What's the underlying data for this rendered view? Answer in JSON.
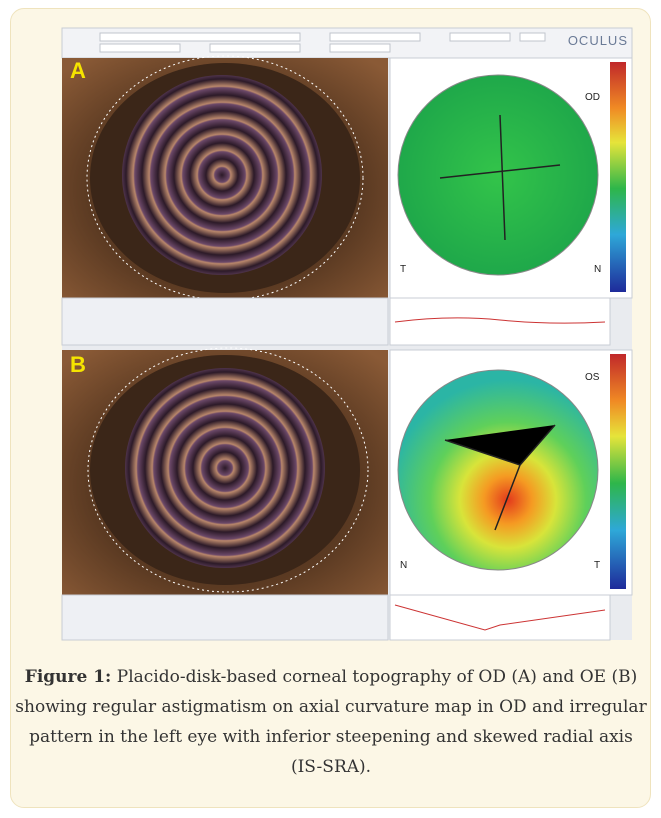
{
  "figure": {
    "header": {
      "brand": "OCULUS"
    },
    "panels": [
      {
        "label": "A",
        "eye": "OD",
        "left_side": "T",
        "right_side": "N"
      },
      {
        "label": "B",
        "eye": "OS",
        "left_side": "N",
        "right_side": "T"
      }
    ],
    "caption": {
      "label": "Figure 1:",
      "text": "Placido-disk-based corneal topography of OD (A) and OE (B) showing regular astigmatism on axial curvature map in OD and irregular pattern in the left eye with inferior steepening and skewed radial axis (IS-SRA)."
    }
  }
}
